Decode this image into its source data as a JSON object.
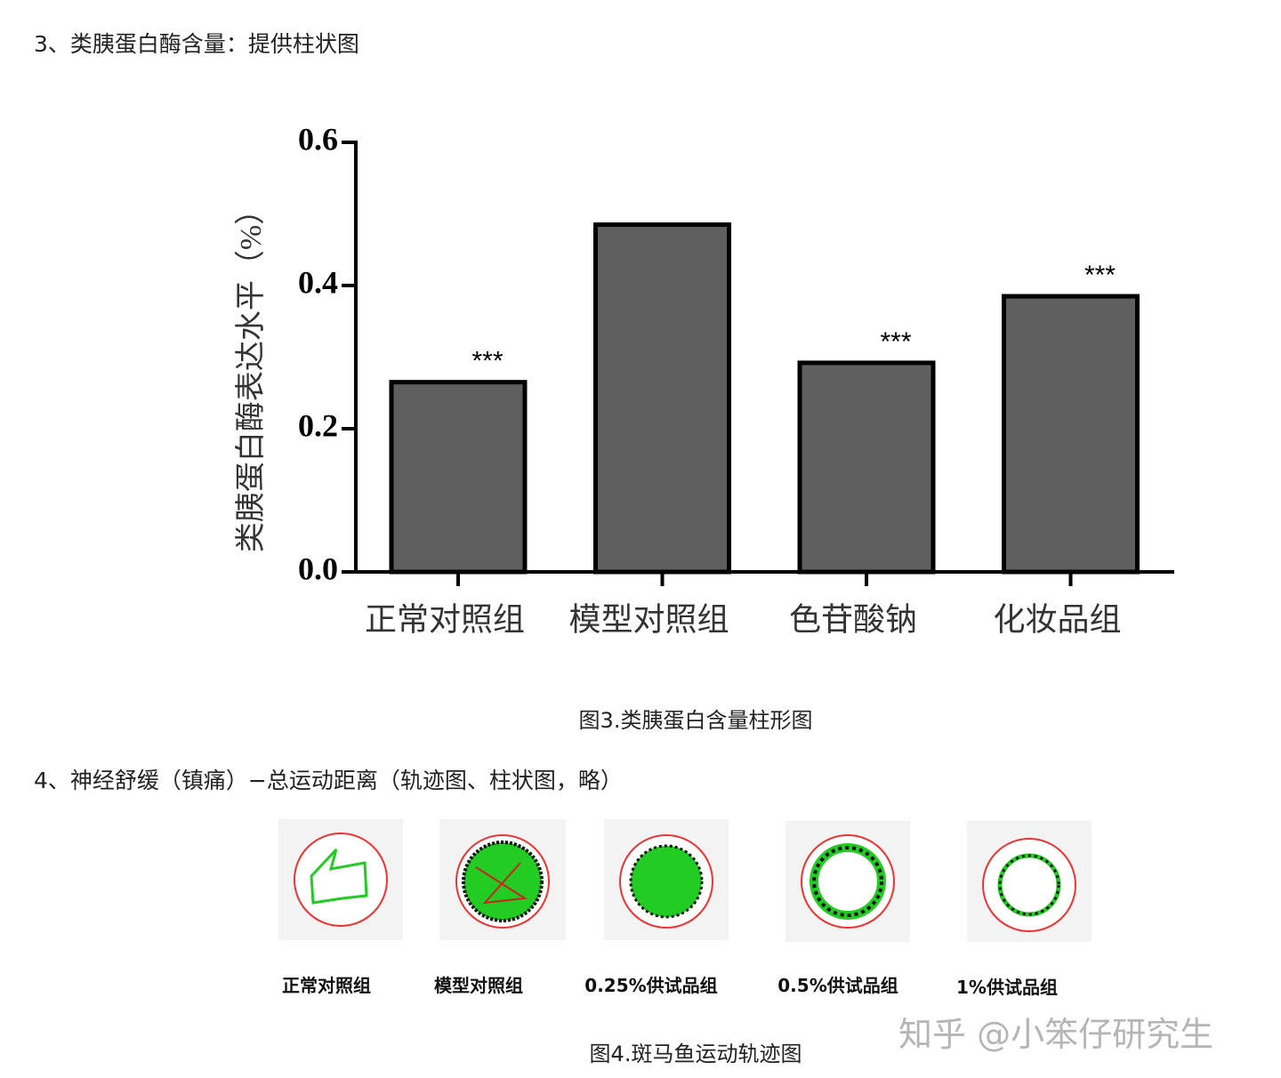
{
  "heading1": "3、类胰蛋白酶含量：提供柱状图",
  "chart_data": {
    "type": "bar",
    "y_label": "类胰蛋白酶表达水平（%）",
    "categories": [
      "正常对照组",
      "模型对照组",
      "色苷酸钠",
      "化妆品组"
    ],
    "values": [
      0.265,
      0.485,
      0.292,
      0.385
    ],
    "annotations": [
      "***",
      null,
      "***",
      "***"
    ],
    "color": "#5f5f5f",
    "ylim": [
      0,
      0.6
    ],
    "yticks": [
      {
        "value": 0,
        "label": "0.0"
      },
      0.2,
      0.4,
      0.6
    ]
  },
  "caption1": "图3.类胰蛋白含量柱形图",
  "heading2": "4、神经舒缓（镇痛）−总运动距离（轨迹图、柱状图，略）",
  "trajectory_labels": [
    "正常对照组",
    "模型对照组",
    "0.25%供试品组",
    "0.5%供试品组",
    "1%供试品组"
  ],
  "caption2": "图4.斑马鱼运动轨迹图",
  "watermark": "知乎 @小笨仔研究生"
}
